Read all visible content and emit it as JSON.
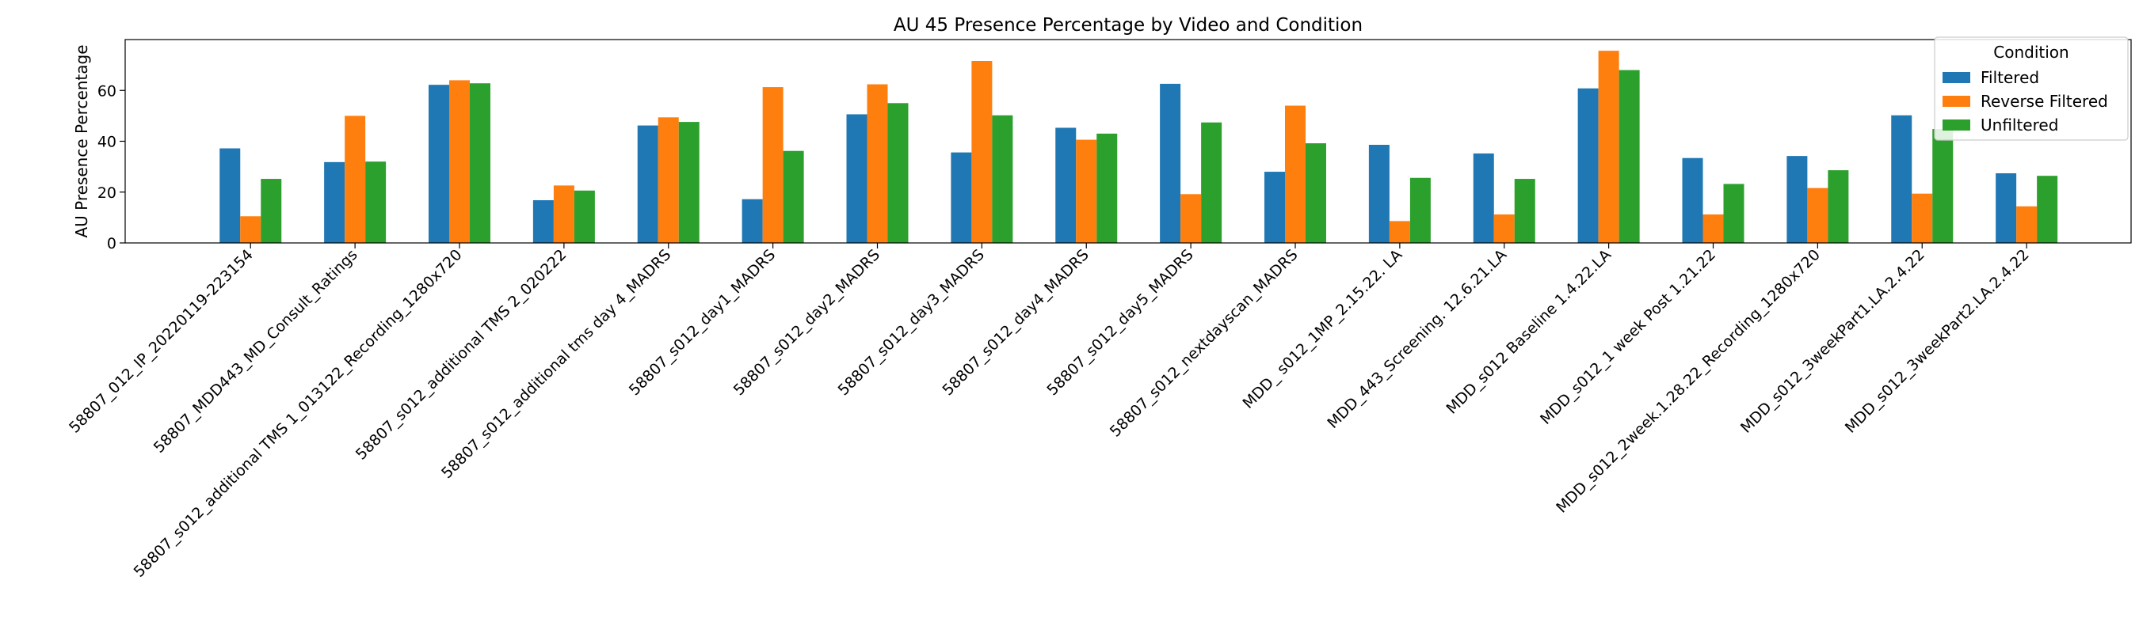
{
  "chart_data": {
    "type": "bar",
    "title": "AU 45 Presence Percentage by Video and Condition",
    "xlabel": "",
    "ylabel": "AU Presence Percentage",
    "ylim": [
      0,
      80
    ],
    "yticks": [
      0,
      20,
      40,
      60
    ],
    "grid": false,
    "legend": {
      "title": "Condition",
      "placement": "top-right"
    },
    "categories": [
      "58807_012_IP_20220119-223154",
      "58807_MDD443_MD_Consult_Ratings",
      "58807_s012_additional TMS 1_013122_Recording_1280x720",
      "58807_s012_additional TMS 2_020222",
      "58807_s012_additional tms day 4_MADRS",
      "58807_s012_day1_MADRS",
      "58807_s012_day2_MADRS",
      "58807_s012_day3_MADRS",
      "58807_s012_day4_MADRS",
      "58807_s012_day5_MADRS",
      "58807_s012_nextdayscan_MADRS",
      "MDD_ s012_1MP_2.15.22. LA",
      "MDD_443_Screening. 12.6.21.LA",
      "MDD_s012 Baseline 1.4.22.LA",
      "MDD_s012_1 week Post 1.21.22",
      "MDD_s012_2week.1.28.22_Recording_1280x720",
      "MDD_s012_3weekPart1.LA.2.4.22",
      "MDD_s012_3weekPart2.LA.2.4.22"
    ],
    "series": [
      {
        "name": "Filtered",
        "color": "#1f77b4",
        "values": [
          37.2,
          31.8,
          62.2,
          16.8,
          46.2,
          17.2,
          50.6,
          35.6,
          45.3,
          62.6,
          28.0,
          38.6,
          35.2,
          60.8,
          33.4,
          34.2,
          50.2,
          27.4
        ]
      },
      {
        "name": "Reverse Filtered",
        "color": "#ff7f0e",
        "values": [
          10.5,
          50.0,
          64.0,
          22.6,
          49.4,
          61.3,
          62.4,
          71.6,
          40.6,
          19.2,
          54.0,
          8.6,
          11.2,
          75.6,
          11.2,
          21.6,
          19.4,
          14.4
        ]
      },
      {
        "name": "Unfiltered",
        "color": "#2ca02c",
        "values": [
          25.2,
          32.0,
          62.8,
          20.6,
          47.6,
          36.2,
          55.0,
          50.2,
          43.0,
          47.4,
          39.2,
          25.6,
          25.2,
          68.0,
          23.2,
          28.6,
          44.8,
          26.4
        ]
      }
    ]
  }
}
